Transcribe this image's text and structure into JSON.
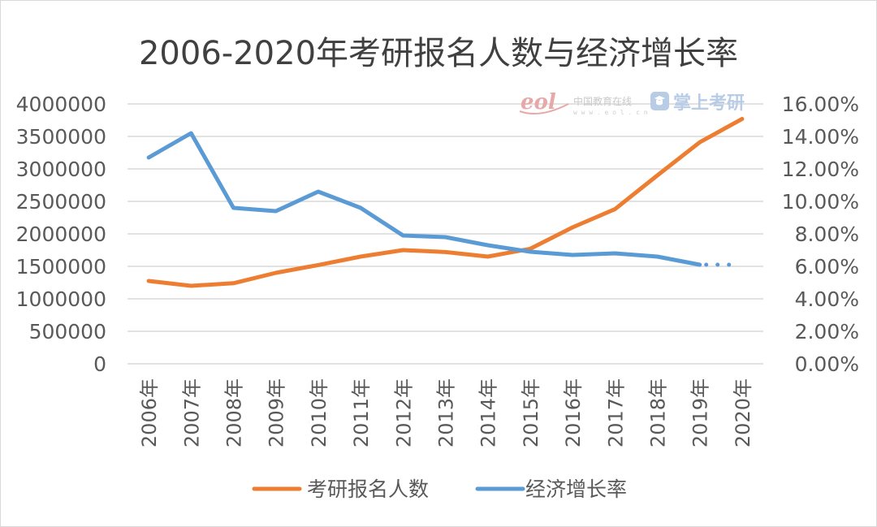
{
  "chart_data": {
    "type": "line",
    "title": "2006-2020年考研报名人数与经济增长率",
    "categories": [
      "2006年",
      "2007年",
      "2008年",
      "2009年",
      "2010年",
      "2011年",
      "2012年",
      "2013年",
      "2014年",
      "2015年",
      "2016年",
      "2017年",
      "2018年",
      "2019年",
      "2020年"
    ],
    "series": [
      {
        "name": "考研报名人数",
        "axis": "left",
        "color": "#ED7D31",
        "values": [
          1275000,
          1200000,
          1240000,
          1400000,
          1520000,
          1650000,
          1750000,
          1720000,
          1650000,
          1770000,
          2100000,
          2380000,
          2900000,
          3410000,
          3770000
        ]
      },
      {
        "name": "经济增长率",
        "axis": "right",
        "color": "#5B9BD5",
        "values": [
          0.127,
          0.142,
          0.096,
          0.094,
          0.106,
          0.096,
          0.079,
          0.078,
          0.073,
          0.069,
          0.067,
          0.068,
          0.066,
          0.061,
          null
        ],
        "dotted_projection": 0.061
      }
    ],
    "left_axis": {
      "ylim": [
        0,
        4000000
      ],
      "ticks": [
        "0",
        "500000",
        "1000000",
        "1500000",
        "2000000",
        "2500000",
        "3000000",
        "3500000",
        "4000000"
      ]
    },
    "right_axis": {
      "ylim": [
        0,
        0.16
      ],
      "ticks": [
        "0.00%",
        "2.00%",
        "4.00%",
        "6.00%",
        "8.00%",
        "10.00%",
        "12.00%",
        "14.00%",
        "16.00%"
      ]
    },
    "grid": true,
    "legend_position": "bottom"
  },
  "watermark": {
    "logo_text": "eol",
    "org_name": "中国教育在线",
    "domain": "w w w . e o l . c n",
    "brand": "掌上考研",
    "logo_color": "#e9a8a8",
    "brand_color": "#b9cce6"
  }
}
